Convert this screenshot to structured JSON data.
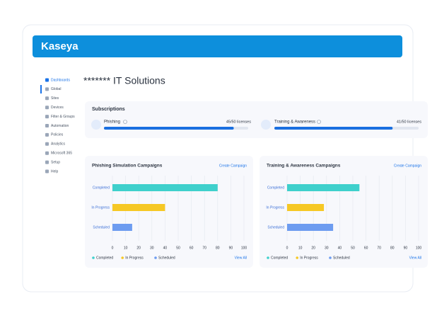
{
  "header": {
    "logo": "Kaseya"
  },
  "sidebar": {
    "items": [
      "Dashboards",
      "Global",
      "Sites",
      "Devices",
      "Filter & Groups",
      "Automation",
      "Policies",
      "Analytics",
      "Microsoft 365",
      "Setup",
      "Help"
    ]
  },
  "page_title": "******* IT Solutions",
  "subscriptions": {
    "title": "Subscriptions",
    "items": [
      {
        "name": "Phishing",
        "licenses": "45/50 licenses",
        "value": 90
      },
      {
        "name": "Training & Awareness",
        "licenses": "41/50 licenses",
        "value": 82
      }
    ]
  },
  "chart_data": [
    {
      "type": "bar",
      "orientation": "horizontal",
      "title": "Phishing Simulation Campaigns",
      "link": "Create Campaign",
      "footer_link": "View All",
      "categories": [
        "Completed",
        "In Progress",
        "Scheduled"
      ],
      "values": [
        80,
        40,
        15
      ],
      "colors": [
        "#3fd0cc",
        "#f6c825",
        "#6d9cf0"
      ],
      "xlim": [
        0,
        100
      ],
      "xticks": [
        0,
        10,
        20,
        30,
        40,
        50,
        60,
        70,
        80,
        90,
        100
      ],
      "grid": true
    },
    {
      "type": "bar",
      "orientation": "horizontal",
      "title": "Training & Awareness Campaigns",
      "link": "Create Campaign",
      "footer_link": "View All",
      "categories": [
        "Completed",
        "In Progress",
        "Scheduled"
      ],
      "values": [
        55,
        28,
        35
      ],
      "colors": [
        "#3fd0cc",
        "#f6c825",
        "#6d9cf0"
      ],
      "xlim": [
        0,
        100
      ],
      "xticks": [
        0,
        10,
        20,
        30,
        40,
        50,
        60,
        70,
        80,
        90,
        100
      ],
      "grid": true
    }
  ]
}
